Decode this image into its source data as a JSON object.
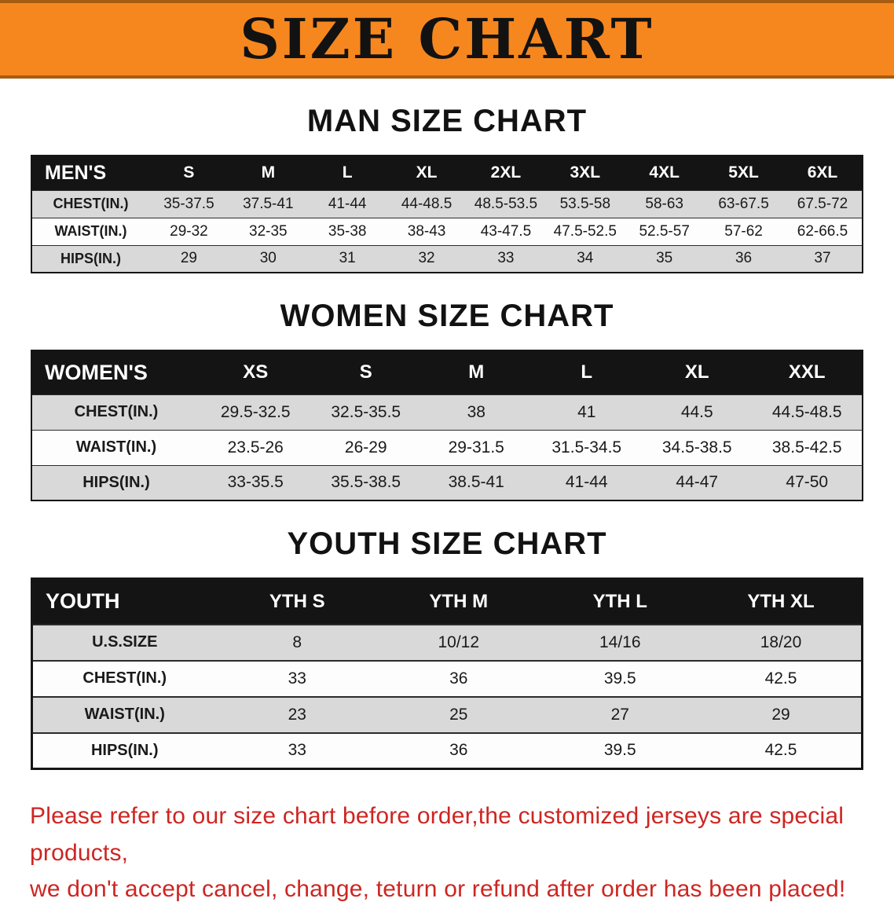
{
  "banner": {
    "title": "SIZE CHART"
  },
  "headings": {
    "men": "MAN SIZE CHART",
    "women": "WOMEN SIZE CHART",
    "youth": "YOUTH SIZE CHART"
  },
  "tables": {
    "men": {
      "header": [
        "MEN'S",
        "S",
        "M",
        "L",
        "XL",
        "2XL",
        "3XL",
        "4XL",
        "5XL",
        "6XL"
      ],
      "rows": [
        {
          "label": "CHEST(IN.)",
          "values": [
            "35-37.5",
            "37.5-41",
            "41-44",
            "44-48.5",
            "48.5-53.5",
            "53.5-58",
            "58-63",
            "63-67.5",
            "67.5-72"
          ]
        },
        {
          "label": "WAIST(IN.)",
          "values": [
            "29-32",
            "32-35",
            "35-38",
            "38-43",
            "43-47.5",
            "47.5-52.5",
            "52.5-57",
            "57-62",
            "62-66.5"
          ]
        },
        {
          "label": "HIPS(IN.)",
          "values": [
            "29",
            "30",
            "31",
            "32",
            "33",
            "34",
            "35",
            "36",
            "37"
          ]
        }
      ]
    },
    "women": {
      "header": [
        "WOMEN'S",
        "XS",
        "S",
        "M",
        "L",
        "XL",
        "XXL"
      ],
      "rows": [
        {
          "label": "CHEST(IN.)",
          "values": [
            "29.5-32.5",
            "32.5-35.5",
            "38",
            "41",
            "44.5",
            "44.5-48.5"
          ]
        },
        {
          "label": "WAIST(IN.)",
          "values": [
            "23.5-26",
            "26-29",
            "29-31.5",
            "31.5-34.5",
            "34.5-38.5",
            "38.5-42.5"
          ]
        },
        {
          "label": "HIPS(IN.)",
          "values": [
            "33-35.5",
            "35.5-38.5",
            "38.5-41",
            "41-44",
            "44-47",
            "47-50"
          ]
        }
      ]
    },
    "youth": {
      "header": [
        "YOUTH",
        "YTH S",
        "YTH M",
        "YTH L",
        "YTH XL"
      ],
      "rows": [
        {
          "label": "U.S.SIZE",
          "values": [
            "8",
            "10/12",
            "14/16",
            "18/20"
          ]
        },
        {
          "label": "CHEST(IN.)",
          "values": [
            "33",
            "36",
            "39.5",
            "42.5"
          ]
        },
        {
          "label": "WAIST(IN.)",
          "values": [
            "23",
            "25",
            "27",
            "29"
          ]
        },
        {
          "label": "HIPS(IN.)",
          "values": [
            "33",
            "36",
            "39.5",
            "42.5"
          ]
        }
      ]
    }
  },
  "footer": {
    "line1": "Please refer to our size chart before order,the customized jerseys are special products,",
    "line2": "we don't accept cancel, change, teturn or refund after order has been placed!"
  },
  "colors": {
    "banner_orange": "#f6871e",
    "table_header_black": "#141414",
    "row_shade_gray": "#d9d9d9",
    "footer_red": "#cd2622"
  }
}
